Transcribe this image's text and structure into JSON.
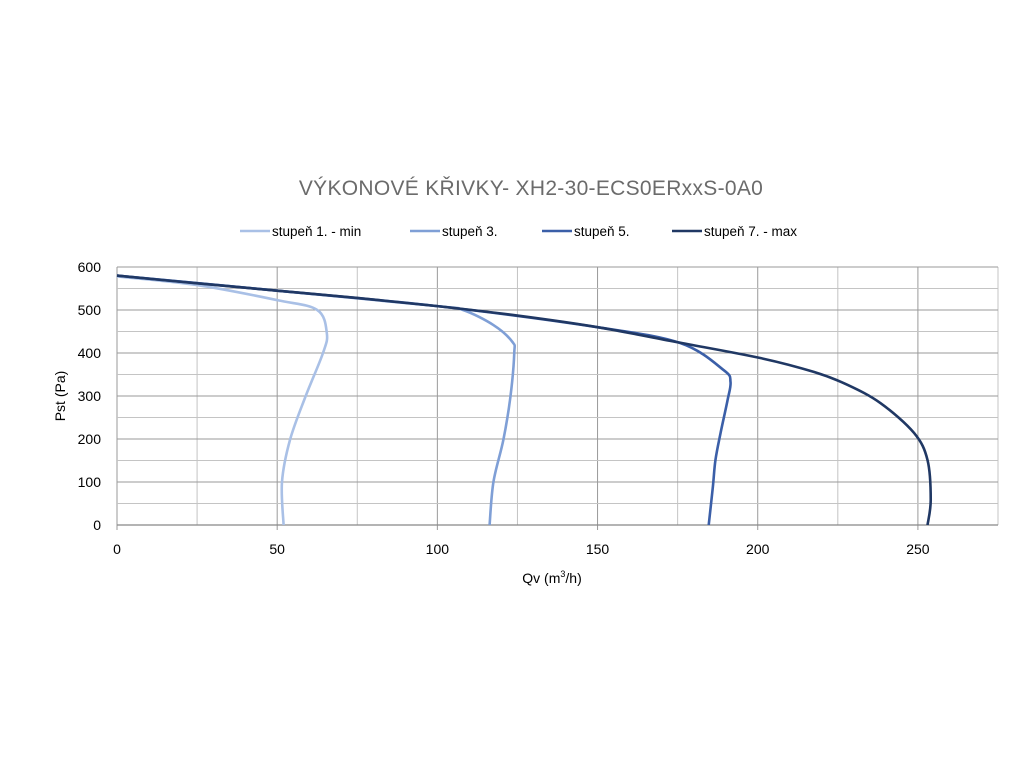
{
  "chart_data": {
    "type": "line",
    "title": "VÝKONOVÉ KŘIVKY- XH2-30-ECS0ERxxS-0A0",
    "xlabel_main": "Qv (m",
    "xlabel_sup": "3",
    "xlabel_end": "/h)",
    "ylabel": "Pst (Pa)",
    "xlim": [
      0,
      275
    ],
    "ylim": [
      0,
      600
    ],
    "xticks": [
      0,
      50,
      100,
      150,
      200,
      250
    ],
    "yticks": [
      0,
      100,
      200,
      300,
      400,
      500,
      600
    ],
    "grid": true,
    "legend_position": "top",
    "series": [
      {
        "name": "stupeň 1. - min",
        "color": "#a9c0e6",
        "points": [
          [
            0,
            578
          ],
          [
            25,
            558
          ],
          [
            50,
            523
          ],
          [
            62.5,
            500
          ],
          [
            65.5,
            446
          ],
          [
            64.3,
            400
          ],
          [
            58.8,
            298
          ],
          [
            54,
            198
          ],
          [
            51.5,
            100
          ],
          [
            52,
            0
          ]
        ]
      },
      {
        "name": "stupeň 3.",
        "color": "#7f9fd6",
        "points": [
          [
            0,
            580
          ],
          [
            50,
            545
          ],
          [
            100,
            509
          ],
          [
            108,
            500
          ],
          [
            117.5,
            465
          ],
          [
            123.4,
            426
          ],
          [
            124,
            400
          ],
          [
            122.8,
            298
          ],
          [
            120.6,
            198
          ],
          [
            117.5,
            100
          ],
          [
            116.3,
            0
          ]
        ]
      },
      {
        "name": "stupeň 5.",
        "color": "#3b5fa8",
        "points": [
          [
            0,
            580
          ],
          [
            50,
            545
          ],
          [
            100,
            509
          ],
          [
            150,
            460
          ],
          [
            175.9,
            423
          ],
          [
            189.4,
            360
          ],
          [
            191.5,
            333
          ],
          [
            190.6,
            291
          ],
          [
            188.4,
            214
          ],
          [
            186.8,
            151
          ],
          [
            186,
            89
          ],
          [
            184.7,
            0
          ]
        ]
      },
      {
        "name": "stupeň 7. - max",
        "color": "#203864",
        "points": [
          [
            0,
            580
          ],
          [
            25,
            562
          ],
          [
            50,
            545
          ],
          [
            75,
            528
          ],
          [
            100,
            509
          ],
          [
            125,
            487
          ],
          [
            150,
            460
          ],
          [
            175,
            425
          ],
          [
            201,
            388
          ],
          [
            217.5,
            356
          ],
          [
            228,
            326
          ],
          [
            238.4,
            283
          ],
          [
            248.8,
            214
          ],
          [
            253,
            151
          ],
          [
            254,
            58
          ],
          [
            253,
            0
          ]
        ]
      }
    ]
  }
}
